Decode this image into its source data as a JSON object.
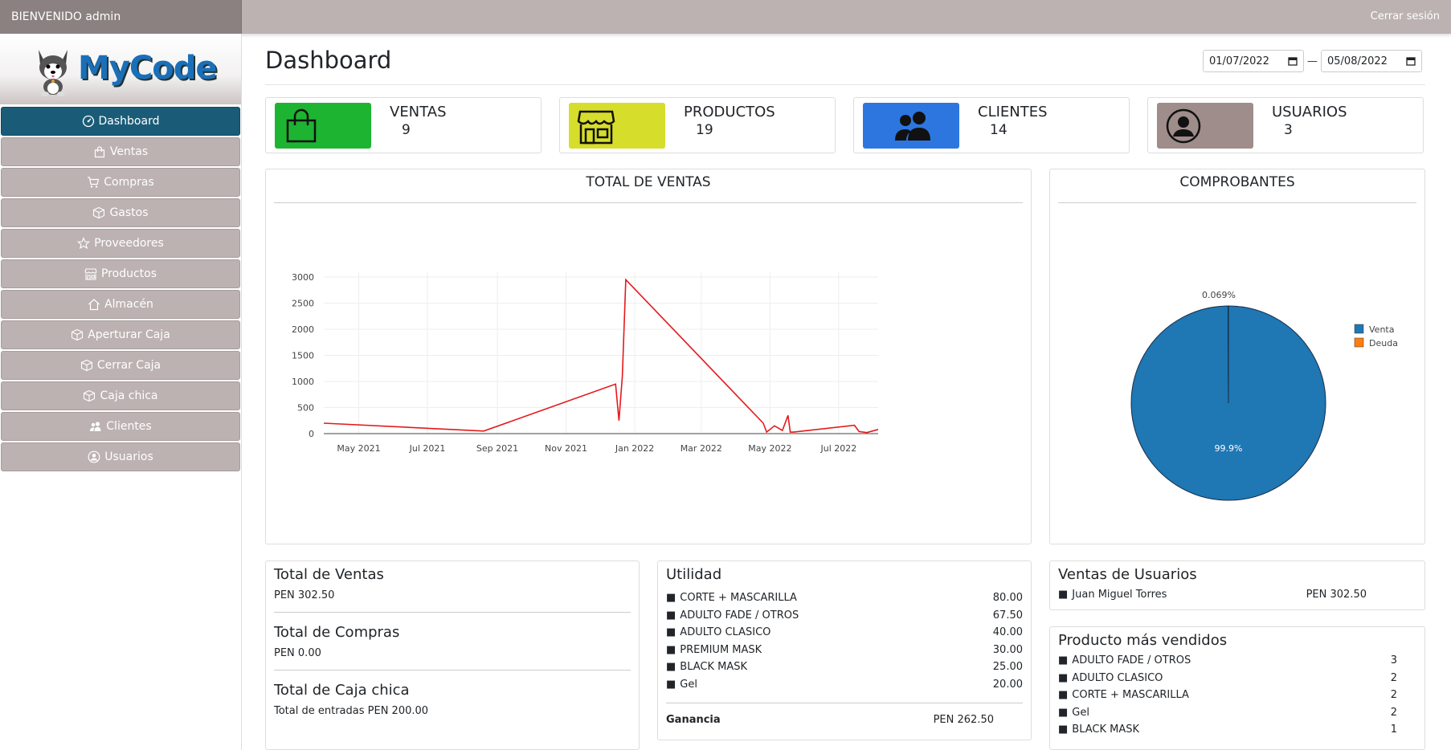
{
  "topbar": {
    "welcome": "BIENVENIDO admin",
    "logout": "Cerrar sesión"
  },
  "brand": {
    "name": "MyCode"
  },
  "sidebar": {
    "items": [
      {
        "label": "Dashboard",
        "icon": "dashboard-icon",
        "active": true
      },
      {
        "label": "Ventas",
        "icon": "bag-icon"
      },
      {
        "label": "Compras",
        "icon": "cart-icon"
      },
      {
        "label": "Gastos",
        "icon": "box-icon"
      },
      {
        "label": "Proveedores",
        "icon": "star-icon"
      },
      {
        "label": "Productos",
        "icon": "shop-icon"
      },
      {
        "label": "Almacén",
        "icon": "house-icon"
      },
      {
        "label": "Aperturar Caja",
        "icon": "box-icon"
      },
      {
        "label": "Cerrar Caja",
        "icon": "box-icon"
      },
      {
        "label": "Caja chica",
        "icon": "box-icon"
      },
      {
        "label": "Clientes",
        "icon": "people-icon"
      },
      {
        "label": "Usuarios",
        "icon": "user-circle-icon"
      }
    ]
  },
  "header": {
    "title": "Dashboard",
    "date_from": "01/07/2022",
    "date_sep": "—",
    "date_to": "05/08/2022"
  },
  "stats": [
    {
      "label": "VENTAS",
      "value": "9",
      "color": "#1db431",
      "icon": "bag-icon"
    },
    {
      "label": "PRODUCTOS",
      "value": "19",
      "color": "#d7dd2b",
      "icon": "shop-icon"
    },
    {
      "label": "CLIENTES",
      "value": "14",
      "color": "#2d76e0",
      "icon": "people-icon"
    },
    {
      "label": "USUARIOS",
      "value": "3",
      "color": "#9e8d8a",
      "icon": "user-circle-icon"
    }
  ],
  "sales_chart": {
    "title": "TOTAL DE VENTAS",
    "line_color": "#e31a1c"
  },
  "pie_panel": {
    "title": "COMPROBANTES"
  },
  "chart_data": [
    {
      "type": "line",
      "title": "TOTAL DE VENTAS",
      "x_start": "2021-03-31",
      "x_end": "2022-08-05",
      "ylim": [
        0,
        3000
      ],
      "yticks": [
        0,
        500,
        1000,
        1500,
        2000,
        2500,
        3000
      ],
      "xticks": [
        {
          "label": "May 2021",
          "date": "2021-05-01"
        },
        {
          "label": "Jul 2021",
          "date": "2021-07-01"
        },
        {
          "label": "Sep 2021",
          "date": "2021-09-01"
        },
        {
          "label": "Nov 2021",
          "date": "2021-11-01"
        },
        {
          "label": "Jan 2022",
          "date": "2022-01-01"
        },
        {
          "label": "Mar 2022",
          "date": "2022-03-01"
        },
        {
          "label": "May 2022",
          "date": "2022-05-01"
        },
        {
          "label": "Jul 2022",
          "date": "2022-07-01"
        }
      ],
      "grid": true,
      "series": [
        {
          "x": [
            "2021-03-31",
            "2021-08-20",
            "2021-12-15",
            "2021-12-18",
            "2021-12-21",
            "2021-12-24",
            "2022-04-25",
            "2022-04-28",
            "2022-05-05",
            "2022-05-12",
            "2022-05-17",
            "2022-05-19",
            "2022-05-22",
            "2022-07-15",
            "2022-07-19",
            "2022-07-26",
            "2022-08-05"
          ],
          "y": [
            200,
            50,
            950,
            250,
            1100,
            2950,
            200,
            30,
            150,
            60,
            350,
            30,
            30,
            160,
            40,
            20,
            80
          ]
        }
      ]
    },
    {
      "type": "pie",
      "title": "COMPROBANTES",
      "labels": [
        "Venta",
        "Deuda"
      ],
      "values": [
        99.931,
        0.069
      ],
      "display": [
        "99.9%",
        "0.069%"
      ],
      "colors": [
        "#1f77b4",
        "#ff7f0e"
      ],
      "legend": "top-right"
    }
  ],
  "totals": {
    "ventas_title": "Total de Ventas",
    "ventas_value": "PEN 302.50",
    "compras_title": "Total de Compras",
    "compras_value": "PEN 0.00",
    "caja_title": "Total de Caja chica",
    "caja_value": "Total de entradas PEN 200.00"
  },
  "utilidad": {
    "title": "Utilidad",
    "items": [
      {
        "name": "CORTE + MASCARILLA",
        "value": "80.00"
      },
      {
        "name": "ADULTO FADE / OTROS",
        "value": "67.50"
      },
      {
        "name": "ADULTO CLASICO",
        "value": "40.00"
      },
      {
        "name": "PREMIUM MASK",
        "value": "30.00"
      },
      {
        "name": "BLACK MASK",
        "value": "25.00"
      },
      {
        "name": "Gel",
        "value": "20.00"
      }
    ],
    "ganancia_label": "Ganancia",
    "ganancia_value": "PEN 262.50"
  },
  "ventas_usuarios": {
    "title": "Ventas de Usuarios",
    "items": [
      {
        "name": "Juan Miguel Torres",
        "value": "PEN 302.50"
      }
    ]
  },
  "mas_vendidos": {
    "title": "Producto más vendidos",
    "items": [
      {
        "name": "ADULTO FADE / OTROS",
        "value": "3"
      },
      {
        "name": "ADULTO CLASICO",
        "value": "2"
      },
      {
        "name": "CORTE + MASCARILLA",
        "value": "2"
      },
      {
        "name": "Gel",
        "value": "2"
      },
      {
        "name": "BLACK MASK",
        "value": "1"
      }
    ]
  }
}
